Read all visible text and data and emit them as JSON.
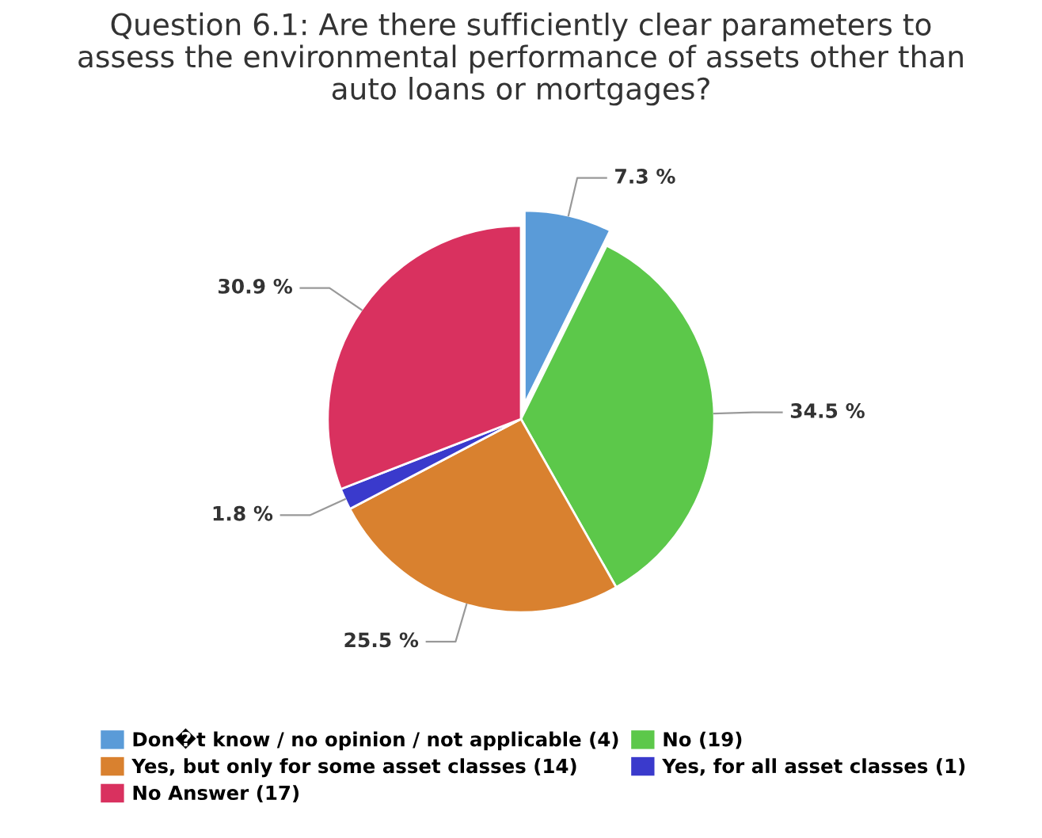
{
  "chart_data": {
    "type": "pie",
    "title": "Question 6.1: Are there sufficiently clear parameters to\nassess the environmental performance of assets other than\nauto loans or mortgages?",
    "categories": [
      "Don�t know / no opinion / not applicable (4)",
      "No (19)",
      "Yes, but only for some asset classes (14)",
      "Yes, for all asset classes (1)",
      "No Answer (17)"
    ],
    "values": [
      7.3,
      34.5,
      25.5,
      1.8,
      30.9
    ],
    "value_labels": [
      "7.3 %",
      "34.5 %",
      "25.5 %",
      "1.8 %",
      "30.9 %"
    ],
    "colors": [
      "#5a9bd8",
      "#5cc84a",
      "#d9812f",
      "#3a3acc",
      "#d9315f"
    ],
    "legend": "bottom"
  }
}
